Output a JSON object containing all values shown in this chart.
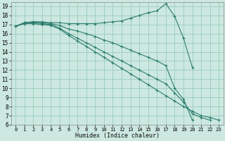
{
  "xlabel": "Humidex (Indice chaleur)",
  "background_color": "#cce8e0",
  "grid_color": "#99ccbb",
  "line_color": "#2d7d6f",
  "xlim": [
    -0.5,
    23.5
  ],
  "ylim": [
    6,
    19.5
  ],
  "xticks": [
    0,
    1,
    2,
    3,
    4,
    5,
    6,
    7,
    8,
    9,
    10,
    11,
    12,
    13,
    14,
    15,
    16,
    17,
    18,
    19,
    20,
    21,
    22,
    23
  ],
  "yticks": [
    6,
    7,
    8,
    9,
    10,
    11,
    12,
    13,
    14,
    15,
    16,
    17,
    18,
    19
  ],
  "series": [
    {
      "x": [
        0,
        1,
        2,
        3,
        4,
        5,
        6,
        7,
        8,
        9,
        10,
        11,
        12,
        13,
        14,
        15,
        16,
        17,
        18,
        19,
        20
      ],
      "y": [
        16.8,
        17.2,
        17.3,
        17.3,
        17.2,
        17.2,
        17.1,
        17.1,
        17.1,
        17.1,
        17.2,
        17.3,
        17.4,
        17.7,
        18.0,
        18.3,
        18.5,
        19.3,
        17.9,
        15.5,
        12.3
      ]
    },
    {
      "x": [
        0,
        1,
        2,
        3,
        4,
        5,
        6,
        7,
        8,
        9,
        10,
        11,
        12,
        13,
        14,
        15,
        16,
        17,
        18,
        19,
        20
      ],
      "y": [
        16.8,
        17.2,
        17.3,
        17.2,
        17.1,
        16.9,
        16.5,
        16.3,
        16.0,
        15.7,
        15.3,
        15.0,
        14.6,
        14.2,
        13.8,
        13.4,
        13.0,
        12.5,
        10.0,
        8.8,
        6.5
      ]
    },
    {
      "x": [
        0,
        1,
        2,
        3,
        4,
        5,
        6,
        7,
        8,
        9,
        10,
        11,
        12,
        13,
        14,
        15,
        16,
        17,
        18,
        19,
        20,
        21,
        22
      ],
      "y": [
        16.8,
        17.2,
        17.2,
        17.1,
        17.0,
        16.6,
        16.0,
        15.5,
        15.0,
        14.5,
        14.0,
        13.5,
        13.0,
        12.5,
        12.0,
        11.5,
        11.0,
        10.5,
        9.5,
        8.5,
        7.2,
        6.8,
        6.5
      ]
    },
    {
      "x": [
        0,
        1,
        2,
        3,
        4,
        5,
        6,
        7,
        8,
        9,
        10,
        11,
        12,
        13,
        14,
        15,
        16,
        17,
        18,
        19,
        20,
        21,
        22,
        23
      ],
      "y": [
        16.8,
        17.1,
        17.1,
        17.0,
        16.9,
        16.5,
        15.8,
        15.2,
        14.6,
        14.0,
        13.4,
        12.8,
        12.2,
        11.6,
        11.0,
        10.4,
        9.8,
        9.2,
        8.6,
        8.0,
        7.5,
        7.0,
        6.8,
        6.5
      ]
    }
  ]
}
